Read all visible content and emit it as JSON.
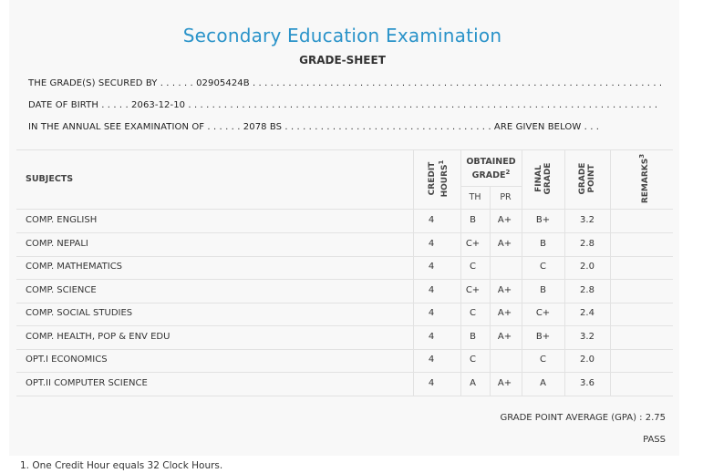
{
  "header": {
    "title": "Secondary Education Examination",
    "subtitle": "GRADE-SHEET"
  },
  "info": {
    "line1": "THE GRADE(S) SECURED BY . . . . . . 02905424B . . . . . . . . . . . . . . . . . . . . . . . . . . . . . . . . . . . . . . . . . . . . . . . . . . . . . . . . . . . . . . . . . . . . .",
    "line2": "DATE OF BIRTH . . . . . 2063-12-10 . . . . . . . . . . . . . . . . . . . . . . . . . . . . . . . . . . . . . . . . . . . . . . . . . . . . . . . . . . . . . . . . . . . . . . . . . . . . . . .",
    "line3": "IN THE ANNUAL SEE EXAMINATION OF . . . . . . 2078 BS . . . . . . . . . . . . . . . . . . . . . . . . . . . . . . . . . . . ARE GIVEN BELOW . . ."
  },
  "table": {
    "col_subjects": "SUBJECTS",
    "col_credit_line1": "CREDIT",
    "col_credit_line2": "HOURS",
    "col_credit_sup": "1",
    "col_obtained_line1": "OBTAINED",
    "col_obtained_line2": "GRADE",
    "col_obtained_sup": "2",
    "col_th": "TH",
    "col_pr": "PR",
    "col_final_line1": "FINAL",
    "col_final_line2": "GRADE",
    "col_point_line1": "GRADE",
    "col_point_line2": "POINT",
    "col_remarks": "REMARKS",
    "col_remarks_sup": "3",
    "rows": [
      {
        "subject": "COMP. ENGLISH",
        "credit": "4",
        "th": "B",
        "pr": "A+",
        "final": "B+",
        "point": "3.2"
      },
      {
        "subject": "COMP. NEPALI",
        "credit": "4",
        "th": "C+",
        "pr": "A+",
        "final": "B",
        "point": "2.8"
      },
      {
        "subject": "COMP. MATHEMATICS",
        "credit": "4",
        "th": "C",
        "pr": "",
        "final": "C",
        "point": "2.0"
      },
      {
        "subject": "COMP. SCIENCE",
        "credit": "4",
        "th": "C+",
        "pr": "A+",
        "final": "B",
        "point": "2.8"
      },
      {
        "subject": "COMP. SOCIAL STUDIES",
        "credit": "4",
        "th": "C",
        "pr": "A+",
        "final": "C+",
        "point": "2.4"
      },
      {
        "subject": "COMP. HEALTH, POP & ENV EDU",
        "credit": "4",
        "th": "B",
        "pr": "A+",
        "final": "B+",
        "point": "3.2"
      },
      {
        "subject": "OPT.I ECONOMICS",
        "credit": "4",
        "th": "C",
        "pr": "",
        "final": "C",
        "point": "2.0"
      },
      {
        "subject": "OPT.II COMPUTER SCIENCE",
        "credit": "4",
        "th": "A",
        "pr": "A+",
        "final": "A",
        "point": "3.6"
      }
    ]
  },
  "summary": {
    "gpa": "GRADE POINT AVERAGE (GPA) : 2.75",
    "result": "PASS"
  },
  "footnote": "1. One Credit Hour equals 32 Clock Hours."
}
